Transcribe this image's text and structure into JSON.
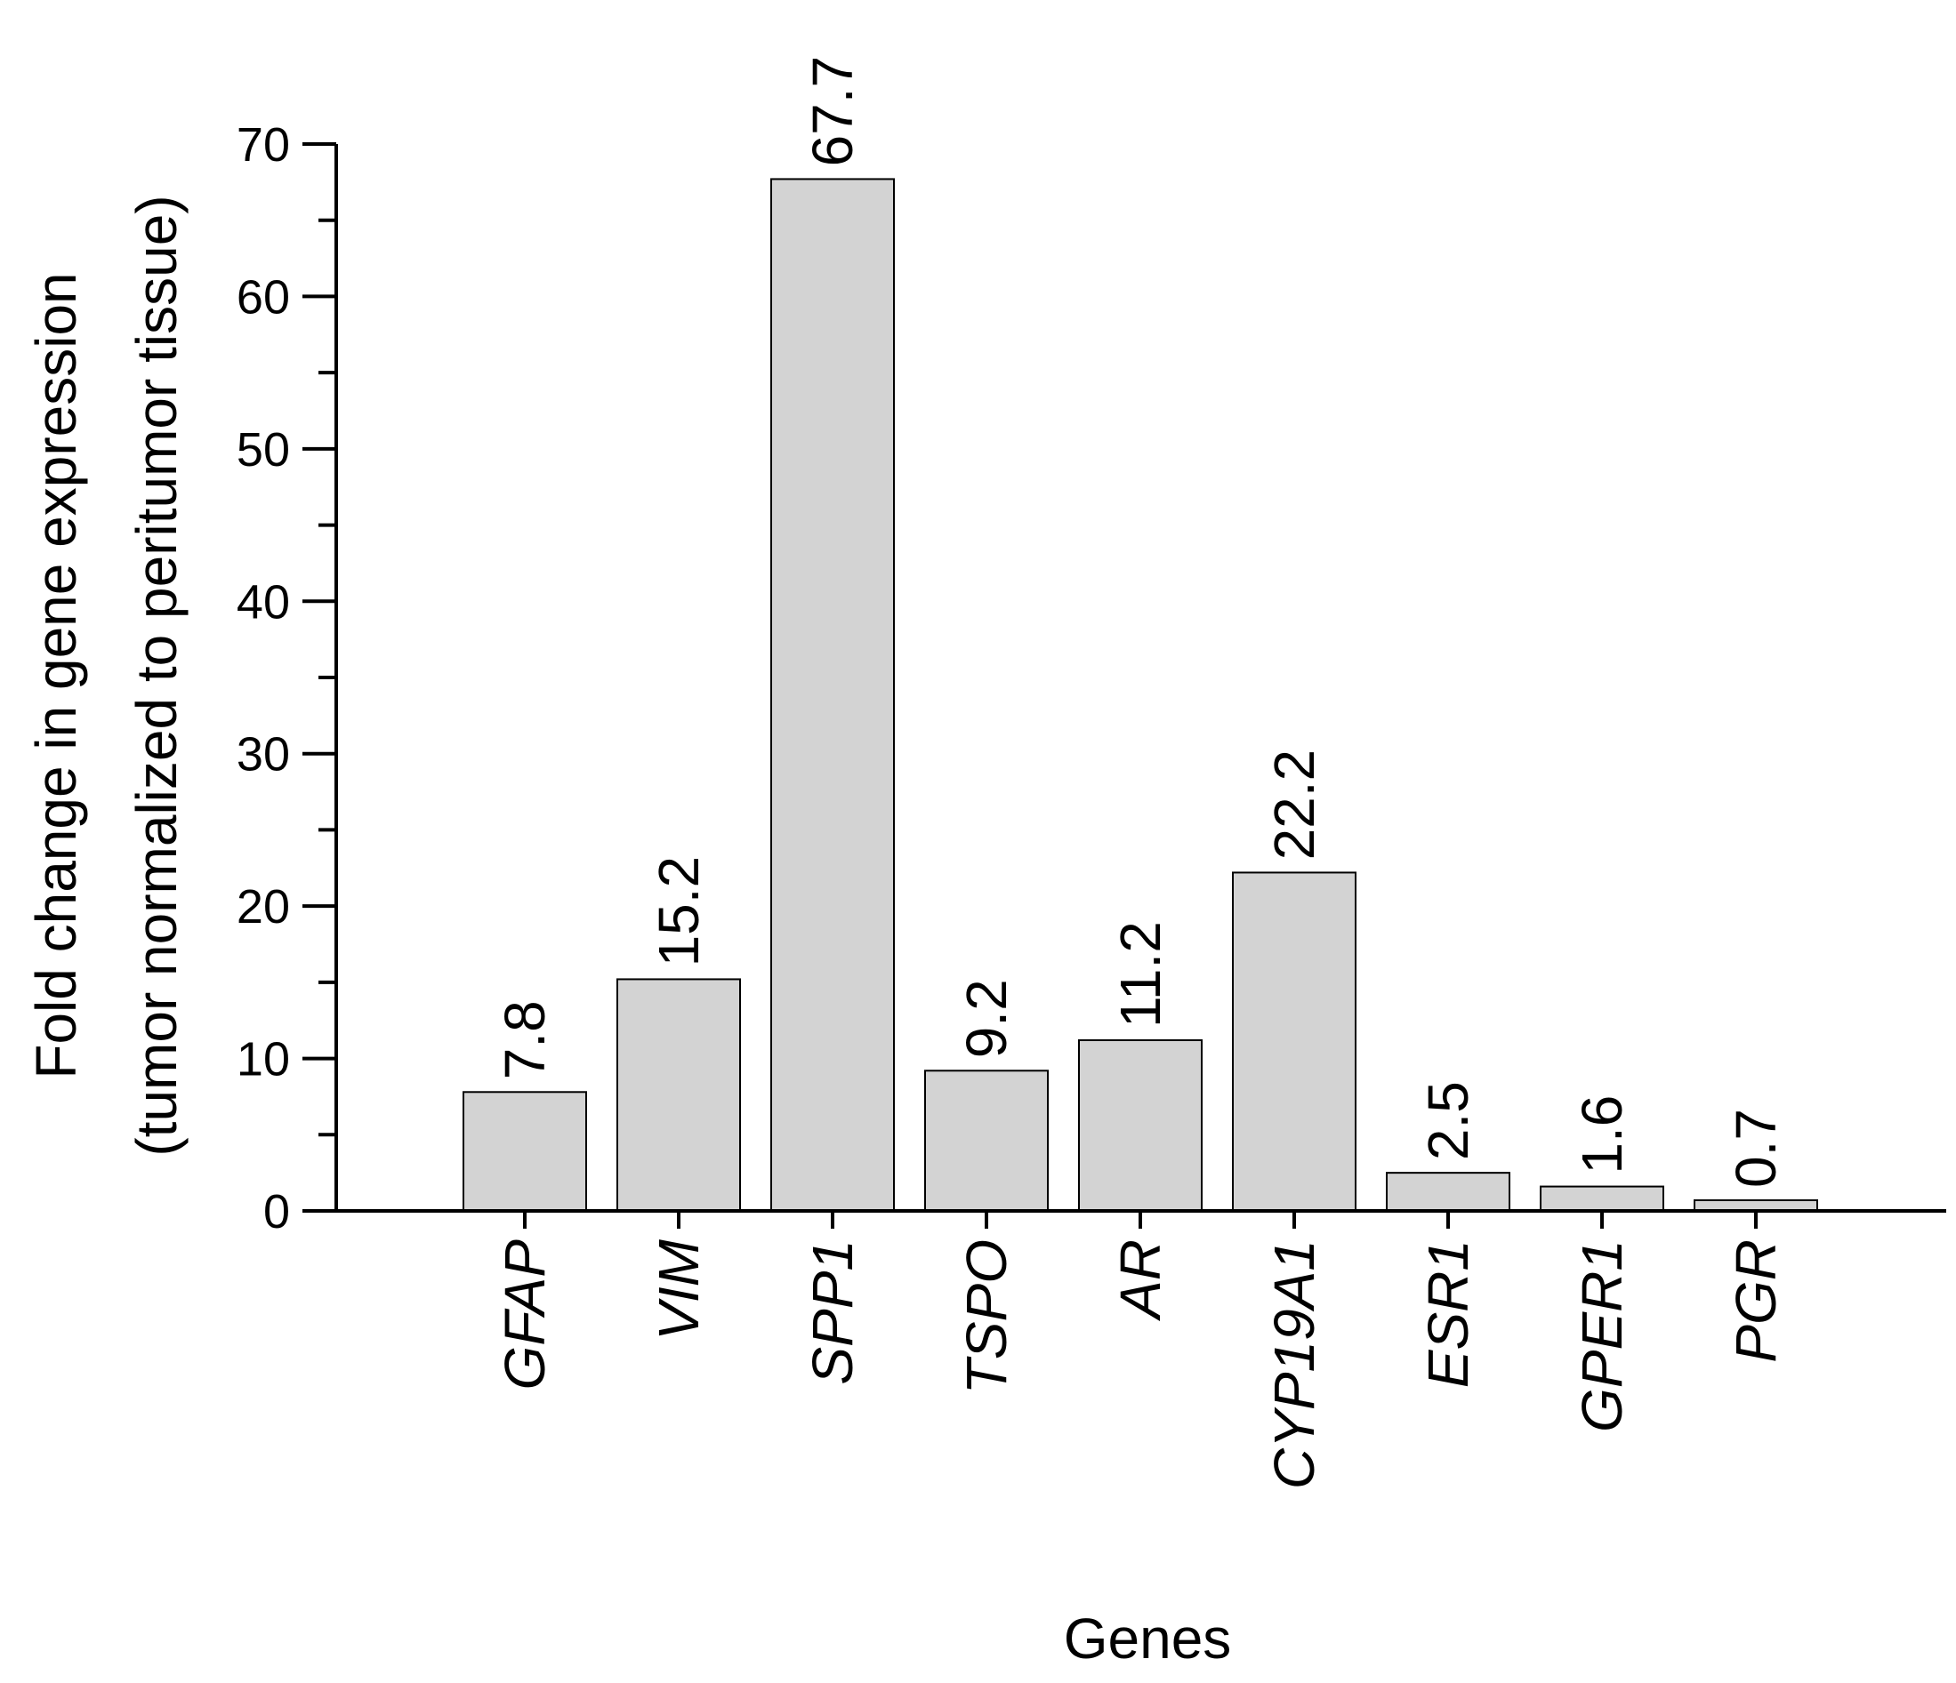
{
  "chart_data": {
    "type": "bar",
    "categories": [
      "GFAP",
      "VIM",
      "SPP1",
      "TSPO",
      "AR",
      "CYP19A1",
      "ESR1",
      "GPER1",
      "PGR"
    ],
    "values": [
      7.8,
      15.2,
      67.7,
      9.2,
      11.2,
      22.2,
      2.5,
      1.6,
      0.7
    ],
    "value_labels": [
      "7.8",
      "15.2",
      "67.7",
      "9.2",
      "11.2",
      "22.2",
      "2.5",
      "1.6",
      "0.7"
    ],
    "xlabel": "Genes",
    "ylabel": {
      "line1": "Fold change in gene expression",
      "line2": "(tumor normalized to peritumor tissue)"
    },
    "ylim": [
      0,
      70
    ],
    "yticks": [
      0,
      10,
      20,
      30,
      40,
      50,
      60,
      70
    ],
    "y_minor_step": 5,
    "grid": false,
    "legend": "none",
    "bar_color": "#d3d3d3",
    "category_style": "italic"
  }
}
